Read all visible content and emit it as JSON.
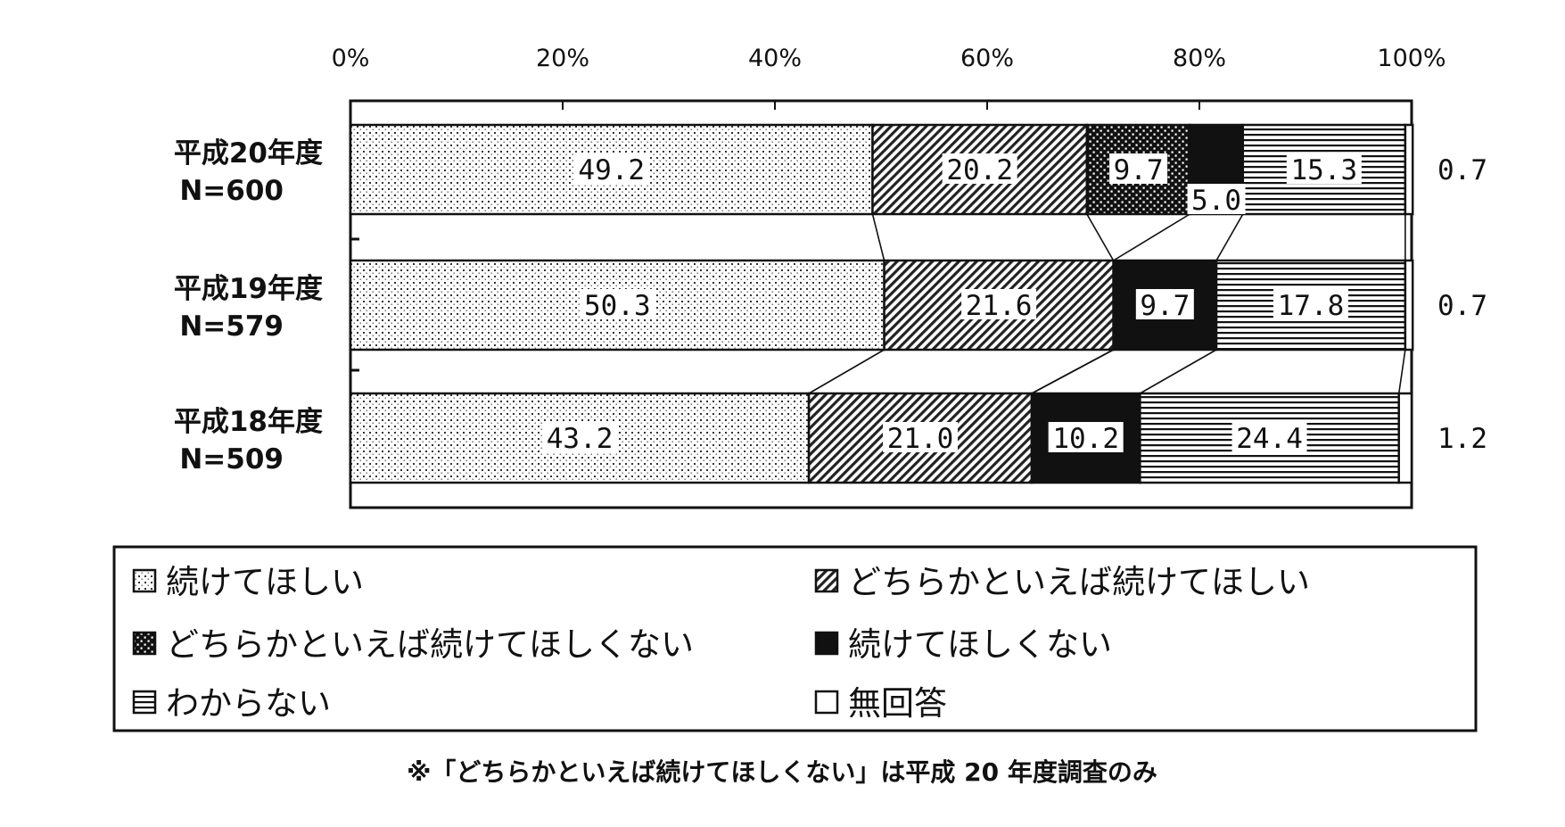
{
  "chart_data": {
    "type": "bar",
    "orientation": "horizontal",
    "stacked": "100%",
    "x_axis": {
      "ticks": [
        "0%",
        "20%",
        "40%",
        "60%",
        "80%",
        "100%"
      ],
      "range": [
        0,
        100
      ]
    },
    "categories": [
      {
        "name": "平成20年度",
        "n": "N=600"
      },
      {
        "name": "平成19年度",
        "n": "N=579"
      },
      {
        "name": "平成18年度",
        "n": "N=509"
      }
    ],
    "series": [
      {
        "name": "続けてほしい",
        "pattern": "dots",
        "values": [
          49.2,
          50.3,
          43.2
        ],
        "labels": [
          "49.2",
          "50.3",
          "43.2"
        ]
      },
      {
        "name": "どちらかといえば続けてほしい",
        "pattern": "diagonal",
        "values": [
          20.2,
          21.6,
          21.0
        ],
        "labels": [
          "20.2",
          "21.6",
          "21.0"
        ]
      },
      {
        "name": "どちらかといえば続けてほしくない",
        "pattern": "checker",
        "values": [
          9.7,
          0,
          0
        ],
        "labels": [
          "9.7",
          "",
          ""
        ]
      },
      {
        "name": "続けてほしくない",
        "pattern": "solid",
        "values": [
          5.0,
          9.7,
          10.2
        ],
        "labels": [
          "5.0",
          "9.7",
          "10.2"
        ]
      },
      {
        "name": "わからない",
        "pattern": "horizontal",
        "values": [
          15.3,
          17.8,
          24.4
        ],
        "labels": [
          "15.3",
          "17.8",
          "24.4"
        ]
      },
      {
        "name": "無回答",
        "pattern": "blank",
        "values": [
          0.7,
          0.7,
          1.2
        ],
        "labels": [
          "0.7",
          "0.7",
          "1.2"
        ],
        "label_outside": true
      }
    ],
    "legend": {
      "placement": "bottom",
      "columns": 2
    },
    "note": "※「どちらかといえば続けてほしくない」は平成 20 年度調査のみ",
    "colors": {
      "ink": "#111111",
      "background": "#ffffff"
    }
  }
}
